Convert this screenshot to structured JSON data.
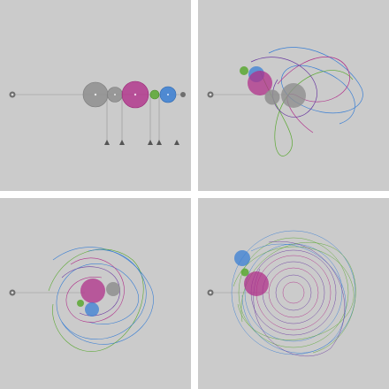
{
  "panels": [
    {
      "stage": "initial",
      "spheres": [
        "gray",
        "gray",
        "magenta",
        "green",
        "blue"
      ]
    },
    {
      "stage": "early-orbits",
      "spheres": [
        "gray",
        "gray",
        "magenta",
        "green",
        "blue"
      ]
    },
    {
      "stage": "mid-orbits",
      "spheres": [
        "gray",
        "gray",
        "magenta",
        "green",
        "blue"
      ]
    },
    {
      "stage": "dense-orbits",
      "spheres": [
        "gray",
        "gray",
        "magenta",
        "green",
        "blue"
      ]
    }
  ],
  "colors": {
    "background": "#cbcbcb",
    "gap": "#ffffff",
    "gray_sphere": "#8f8f8f",
    "magenta": "#b0308a",
    "green": "#5aa832",
    "blue": "#3a7fd4",
    "purple": "#6a3aa0",
    "line": "#8a8a8a",
    "marker": "#555555"
  },
  "icons": {
    "pivot": "pivot-icon",
    "triangle": "triangle-marker-icon"
  }
}
